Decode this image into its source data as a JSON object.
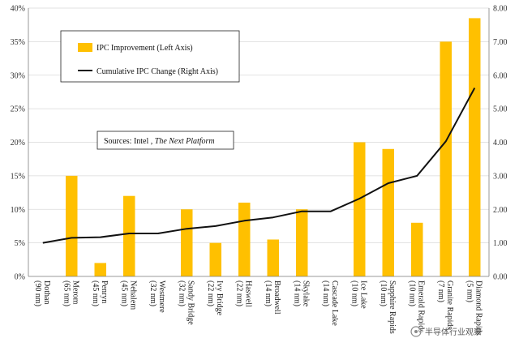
{
  "chart_data": {
    "type": "bar",
    "categories": [
      "Dothan (90 nm)",
      "Merom (65 nm)",
      "Penryn (45 nm)",
      "Nehalem (45 nm)",
      "Westmere (32 nm)",
      "Sandy Bridge (32 nm)",
      "Ivy Bridge (22 nm)",
      "Haswell (22 nm)",
      "Broadwell (14 nm)",
      "Skylake (14 nm)",
      "Cascade Lake (14 nm)",
      "Ice Lake (10 nm)",
      "Sapphire Rapids (10 nm)",
      "Emerald Rapids (10 nm)",
      "Granite Rapids (7 nm)",
      "Diamond Rapids (5 nm)"
    ],
    "category_lines": [
      [
        "Dothan",
        "(90 nm)"
      ],
      [
        "Merom",
        "(65 nm)"
      ],
      [
        "Penryn",
        "(45 nm)"
      ],
      [
        "Nehalem",
        "(45 nm)"
      ],
      [
        "Westmere",
        "(32 nm)"
      ],
      [
        "Sandy Bridge",
        "(32 nm)"
      ],
      [
        "Ivy Bridge",
        "(22 nm)"
      ],
      [
        "Haswell",
        "(22 nm)"
      ],
      [
        "Broadwell",
        "(14 nm)"
      ],
      [
        "Skylake",
        "(14 nm)"
      ],
      [
        "Cascade Lake",
        "(14 nm)"
      ],
      [
        "Ice Lake",
        "(10 nm)"
      ],
      [
        "Sapphire Rapids",
        "(10 nm)"
      ],
      [
        "Emerald Rapids",
        "(10 nm)"
      ],
      [
        "Granite Rapids",
        "(7 nm)"
      ],
      [
        "Diamond Rapids",
        "(5 nm)"
      ]
    ],
    "series": [
      {
        "name": "IPC Improvement (Left Axis)",
        "type": "bar",
        "axis": "left",
        "color": "#FFC000",
        "values": [
          0,
          15,
          2,
          12,
          0,
          10,
          5,
          11,
          5.5,
          10,
          0,
          20,
          19,
          8,
          35,
          38.5
        ]
      },
      {
        "name": "Cumulative IPC Change (Right Axis)",
        "type": "line",
        "axis": "right",
        "color": "#111111",
        "values": [
          1.0,
          1.15,
          1.17,
          1.28,
          1.28,
          1.42,
          1.5,
          1.66,
          1.76,
          1.94,
          1.94,
          2.32,
          2.78,
          3.0,
          4.03,
          5.62
        ]
      }
    ],
    "y_left": {
      "lim": [
        0,
        40
      ],
      "ticks": [
        "0%",
        "5%",
        "10%",
        "15%",
        "20%",
        "25%",
        "30%",
        "35%",
        "40%"
      ]
    },
    "y_right": {
      "lim": [
        0,
        8
      ],
      "ticks": [
        "0.00",
        "1.00",
        "2.00",
        "3.00",
        "4.00",
        "5.00",
        "6.00",
        "7.00",
        "8.00"
      ]
    },
    "grid": true,
    "legend_position": "top-left",
    "annotation": {
      "prefix": "Sources: Intel , ",
      "emphasis": "The Next Platform"
    },
    "watermark": "半导体行业观察"
  }
}
